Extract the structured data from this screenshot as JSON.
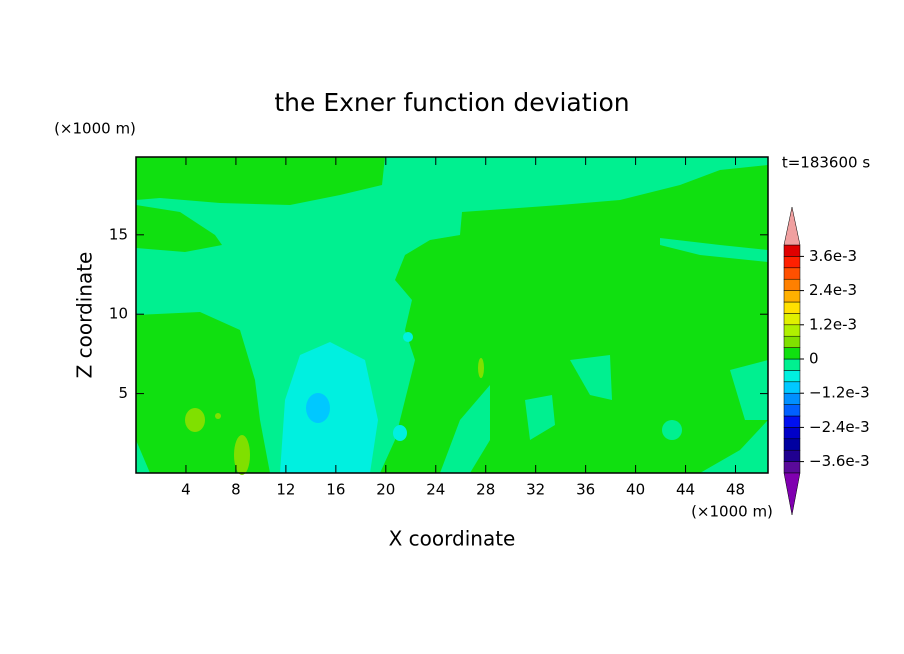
{
  "chart_data": {
    "type": "contour",
    "title": "the Exner function deviation",
    "xlabel": "X coordinate",
    "ylabel": "Z coordinate",
    "x_unit": "(×1000 m)",
    "y_unit": "(×1000 m)",
    "annotation": "t=183600 s",
    "xlim": [
      0,
      50.6
    ],
    "ylim": [
      0,
      19.9
    ],
    "xticks": [
      4,
      8,
      12,
      16,
      20,
      24,
      28,
      32,
      36,
      40,
      44,
      48
    ],
    "yticks": [
      5,
      10,
      15
    ],
    "colorbar": {
      "levels": [
        -0.004,
        -0.0036,
        -0.0032,
        -0.0028,
        -0.0024,
        -0.002,
        -0.0016,
        -0.0012,
        -0.0008,
        -0.0004,
        0,
        0.0004,
        0.0008,
        0.0012,
        0.0016,
        0.002,
        0.0024,
        0.0028,
        0.0032,
        0.0036,
        0.004
      ],
      "colors": [
        "#5a0a9a",
        "#200090",
        "#0000a0",
        "#0000c8",
        "#0010f0",
        "#0060ff",
        "#0090ff",
        "#00c8ff",
        "#00f0e0",
        "#00f090",
        "#10e010",
        "#80e000",
        "#b0f000",
        "#e0f000",
        "#ffe000",
        "#ffb000",
        "#ff8000",
        "#ff5000",
        "#ff2000",
        "#e00000"
      ],
      "over_color": "#f0a0a0",
      "under_color": "#8000b0",
      "ticks": [
        {
          "value": 0.0036,
          "label": "3.6e-3"
        },
        {
          "value": 0.0024,
          "label": "2.4e-3"
        },
        {
          "value": 0.0012,
          "label": "1.2e-3"
        },
        0,
        {
          "value": -0.0012,
          "label": "−1.2e-3"
        },
        {
          "value": -0.0024,
          "label": "−2.4e-3"
        },
        {
          "value": -0.0036,
          "label": "−3.6e-3"
        }
      ]
    }
  }
}
